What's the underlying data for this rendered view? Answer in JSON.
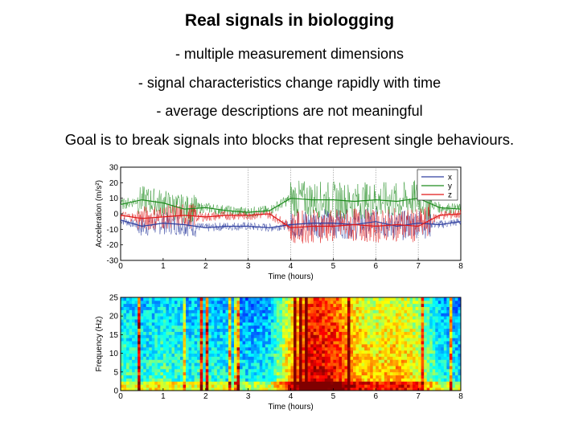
{
  "slide": {
    "title": "Real signals in biologging",
    "bullets": [
      "- multiple measurement dimensions",
      "- signal characteristics change rapidly with time",
      "- average descriptions are not meaningful"
    ],
    "goal": "Goal is to break signals into blocks that represent single behaviours."
  },
  "chart_data": [
    {
      "type": "line",
      "xlabel": "Time (hours)",
      "ylabel": "Acceleration (m/s²)",
      "xlim": [
        0,
        8
      ],
      "ylim": [
        -30,
        30
      ],
      "xticks": [
        0,
        1,
        2,
        3,
        4,
        5,
        6,
        7,
        8
      ],
      "yticks": [
        30,
        20,
        10,
        0,
        -10,
        -20,
        -30
      ],
      "legend": {
        "position": "top-right",
        "entries": [
          "x",
          "y",
          "z"
        ]
      },
      "vertical_markers": [
        3,
        4,
        5,
        6,
        7
      ],
      "series": [
        {
          "name": "x",
          "color": "#3040a0",
          "x": [
            0,
            0.5,
            1,
            1.5,
            2,
            2.5,
            3,
            3.5,
            4,
            4.5,
            5,
            5.5,
            6,
            6.5,
            7,
            7.5,
            8
          ],
          "y": [
            -4,
            -8,
            -6,
            -7,
            -9,
            -8,
            -8,
            -9,
            -7,
            -6,
            -6,
            -7,
            -5,
            -8,
            -6,
            -7,
            -5
          ]
        },
        {
          "name": "y",
          "color": "#1e8c1e",
          "x": [
            0,
            0.5,
            1,
            1.5,
            2,
            2.5,
            3,
            3.5,
            4,
            4.5,
            5,
            5.5,
            6,
            6.5,
            7,
            7.5,
            8
          ],
          "y": [
            6,
            9,
            7,
            3,
            4,
            2,
            1,
            2,
            10,
            9,
            9,
            8,
            9,
            8,
            10,
            4,
            3
          ]
        },
        {
          "name": "z",
          "color": "#e01818",
          "x": [
            0,
            0.5,
            1,
            1.5,
            2,
            2.5,
            3,
            3.5,
            4,
            4.5,
            5,
            5.5,
            6,
            6.5,
            7,
            7.5,
            8
          ],
          "y": [
            -1,
            -3,
            -2,
            -1,
            -2,
            -1,
            -1,
            0,
            -9,
            -8,
            -8,
            -7,
            -8,
            -7,
            -8,
            -1,
            0
          ]
        }
      ]
    },
    {
      "type": "heatmap",
      "xlabel": "Time (hours)",
      "ylabel": "Frequency (Hz)",
      "xlim": [
        0,
        8
      ],
      "ylim": [
        0,
        25
      ],
      "xticks": [
        0,
        1,
        2,
        3,
        4,
        5,
        6,
        7,
        8
      ],
      "yticks": [
        25,
        20,
        15,
        10,
        5,
        0
      ],
      "colormap": "jet",
      "intensity_by_time": {
        "x": [
          0,
          0.5,
          1,
          1.5,
          2,
          2.5,
          3,
          3.5,
          4,
          4.5,
          5,
          5.5,
          6,
          6.5,
          7,
          7.5,
          8
        ],
        "value": [
          0.35,
          0.3,
          0.35,
          0.3,
          0.32,
          0.28,
          0.25,
          0.27,
          0.6,
          0.82,
          0.78,
          0.62,
          0.55,
          0.6,
          0.52,
          0.3,
          0.25
        ]
      }
    }
  ]
}
